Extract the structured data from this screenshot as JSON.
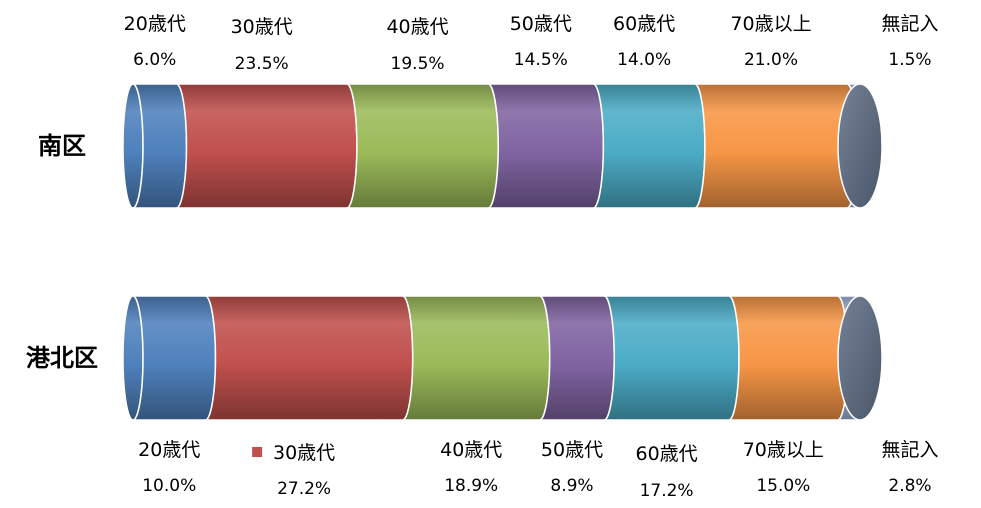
{
  "chart_data": {
    "type": "bar",
    "orientation": "horizontal",
    "stacked": true,
    "percent_stacked": true,
    "style": "3d-cylinder",
    "categories": [
      "南区",
      "港北区"
    ],
    "series": [
      {
        "name": "20歳代",
        "values": [
          6.0,
          10.0
        ],
        "labels": [
          "6.0%",
          "10.0%"
        ],
        "color": "#4f81bd"
      },
      {
        "name": "30歳代",
        "values": [
          23.5,
          27.2
        ],
        "labels": [
          "23.5%",
          "27.2%"
        ],
        "color": "#c0504d"
      },
      {
        "name": "40歳代",
        "values": [
          19.5,
          18.9
        ],
        "labels": [
          "19.5%",
          "18.9%"
        ],
        "color": "#9bbb59"
      },
      {
        "name": "50歳代",
        "values": [
          14.5,
          8.9
        ],
        "labels": [
          "14.5%",
          "8.9%"
        ],
        "color": "#8064a2"
      },
      {
        "name": "60歳代",
        "values": [
          14.0,
          17.2
        ],
        "labels": [
          "14.0%",
          "17.2%"
        ],
        "color": "#4bacc6"
      },
      {
        "name": "70歳以上",
        "values": [
          21.0,
          15.0
        ],
        "labels": [
          "21.0%",
          "15.0%"
        ],
        "color": "#f79646"
      },
      {
        "name": "無記入",
        "values": [
          1.5,
          2.8
        ],
        "labels": [
          "1.5%",
          "2.8%"
        ],
        "color": "#a5b9e0"
      }
    ],
    "end_cap_color": "#5d6b83",
    "legend_marker_series": "30歳代",
    "title": "",
    "xlabel": "",
    "ylabel": "",
    "xlim": [
      0,
      100
    ],
    "grid": false,
    "legend": "none"
  }
}
